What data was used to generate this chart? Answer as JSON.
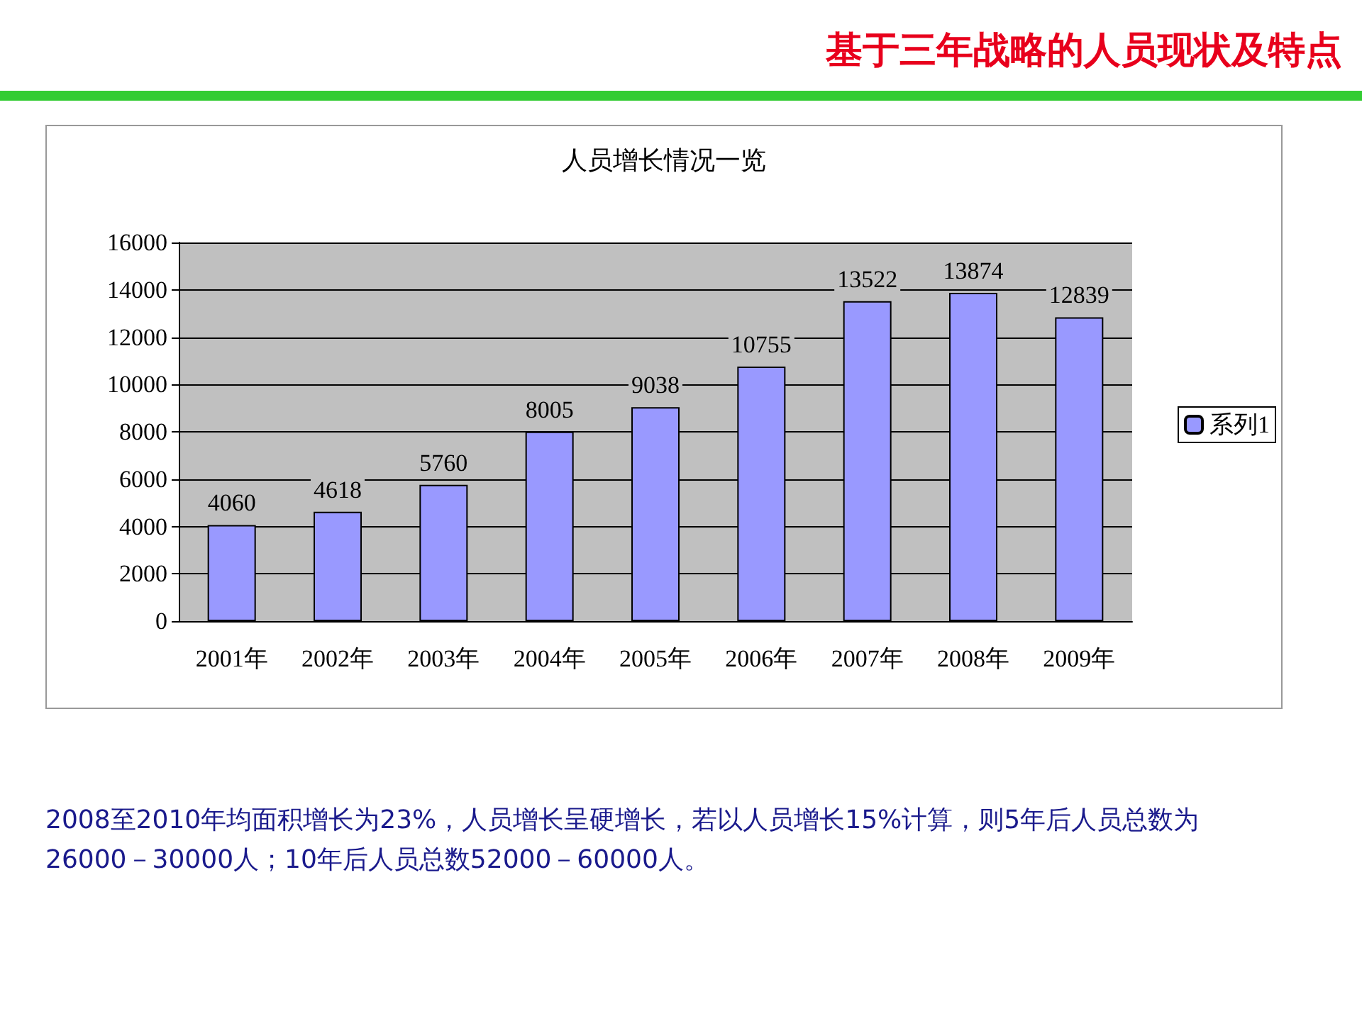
{
  "chart_data": {
    "type": "bar",
    "title": "人员增长情况一览",
    "categories": [
      "2001年",
      "2002年",
      "2003年",
      "2004年",
      "2005年",
      "2006年",
      "2007年",
      "2008年",
      "2009年"
    ],
    "series": [
      {
        "name": "系列1",
        "color": "#9999ff",
        "values": [
          4060,
          4618,
          5760,
          8005,
          9038,
          10755,
          13522,
          13874,
          12839
        ]
      }
    ],
    "ylim": [
      0,
      16000
    ],
    "yticks": [
      0,
      2000,
      4000,
      6000,
      8000,
      10000,
      12000,
      14000,
      16000
    ],
    "grid": "y",
    "legend": "right",
    "data_labels": true,
    "annotations": [
      "基于三年战略的人员现状及特点",
      "2008至2010年均面积增长为23%，人员增长呈硬增长，若以人员增长15%计算，则5年后人员总数为26000－30000人；10年后人员总数52000－60000人。"
    ]
  }
}
